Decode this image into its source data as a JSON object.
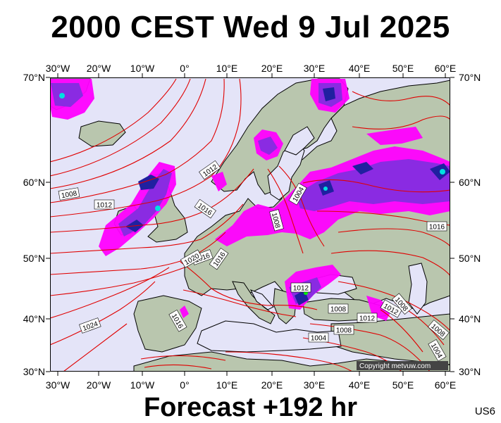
{
  "title": "2000 CEST Wed 9 Jul 2025",
  "subtitle": "Forecast +192 hr",
  "product_code": "US6",
  "copyright": "Copyright metvuw.com",
  "map": {
    "lon_ticks": [
      "30°W",
      "20°W",
      "10°W",
      "0°",
      "10°E",
      "20°E",
      "30°E",
      "40°E",
      "50°E",
      "60°E"
    ],
    "lat_ticks": [
      "70°N",
      "60°N",
      "50°N",
      "40°N",
      "30°N"
    ],
    "isobar_labels": [
      "1012",
      "1008",
      "1012",
      "1016",
      "1016",
      "1020",
      "1016",
      "1008",
      "1004",
      "1016",
      "1012",
      "1008",
      "1012",
      "1012",
      "1008",
      "1008",
      "1004",
      "1024",
      "1016",
      "1008",
      "1004"
    ],
    "colors": {
      "sea": "#e4e4f8",
      "land": "#b9c6ae",
      "isobar": "#e00000",
      "precip_light": "#ff00ff",
      "precip_medium": "#8a2be2",
      "precip_heavy": "#2020a0",
      "precip_extreme": "#00e0e0"
    }
  }
}
